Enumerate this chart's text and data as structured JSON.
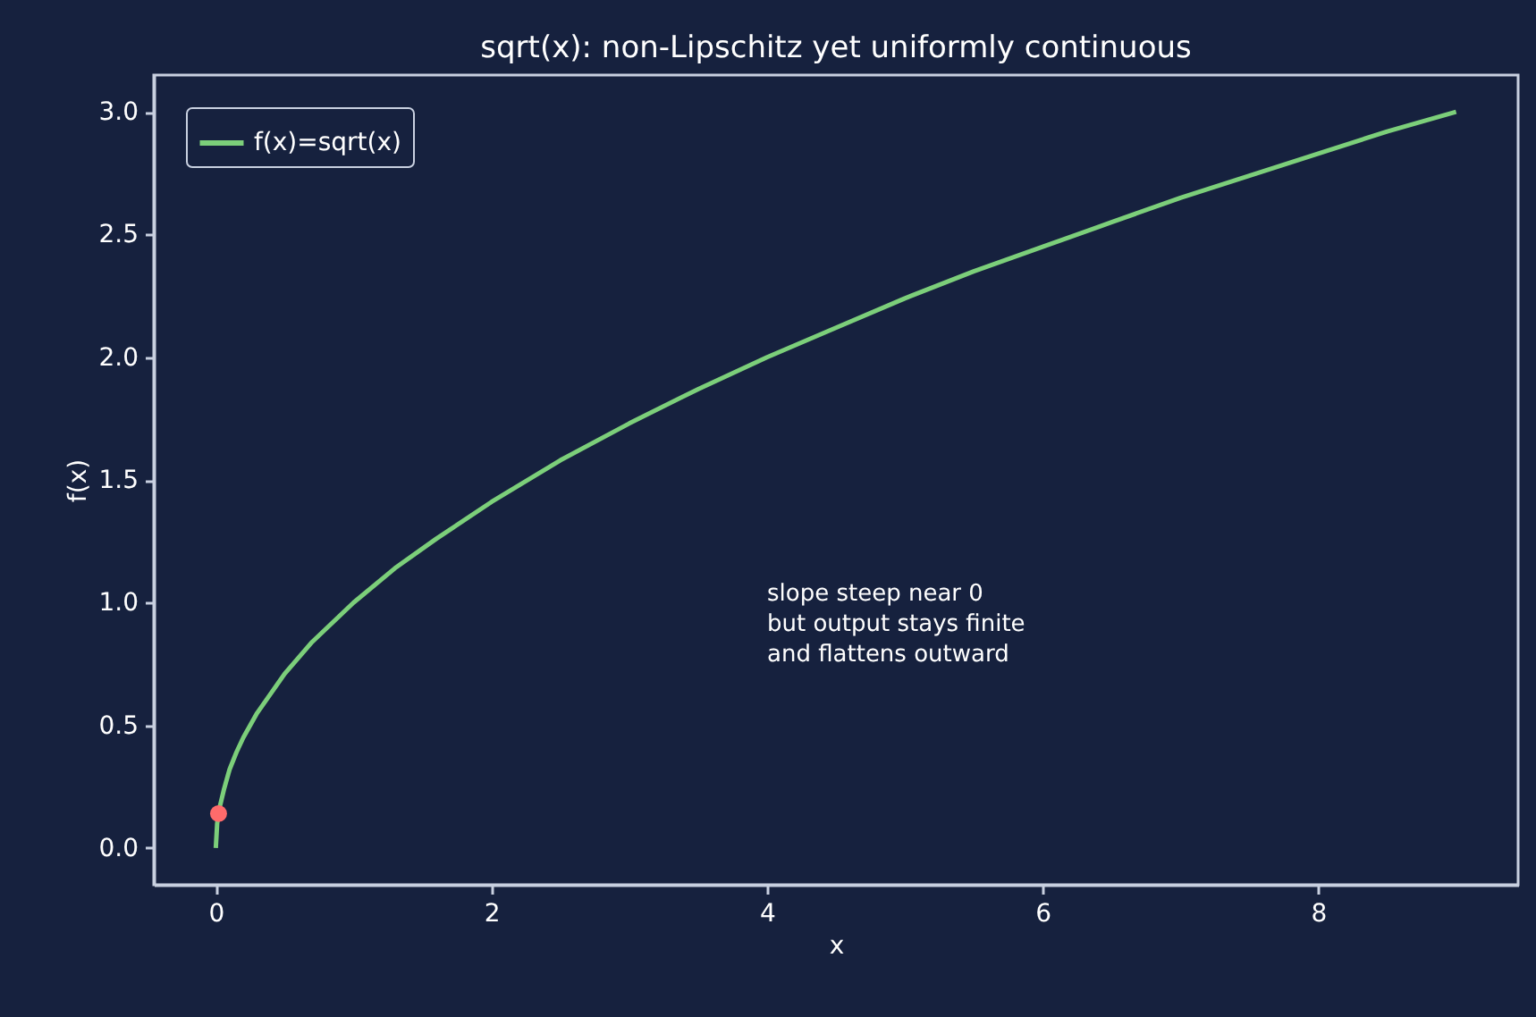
{
  "chart_data": {
    "type": "line",
    "title": "sqrt(x): non-Lipschitz yet uniformly continuous",
    "xlabel": "x",
    "ylabel": "f(x)",
    "x": [
      0,
      0.01,
      0.03,
      0.06,
      0.1,
      0.15,
      0.2,
      0.3,
      0.4,
      0.5,
      0.7,
      1,
      1.3,
      1.6,
      2,
      2.5,
      3,
      3.5,
      4,
      4.5,
      5,
      5.5,
      6,
      6.5,
      7,
      7.5,
      8,
      8.5,
      9
    ],
    "series": [
      {
        "name": "f(x)=sqrt(x)",
        "color": "#7ccf7a",
        "values": [
          0,
          0.1,
          0.17,
          0.24,
          0.32,
          0.39,
          0.45,
          0.55,
          0.63,
          0.71,
          0.84,
          1,
          1.14,
          1.26,
          1.41,
          1.58,
          1.73,
          1.87,
          2,
          2.12,
          2.24,
          2.35,
          2.45,
          2.55,
          2.65,
          2.74,
          2.83,
          2.92,
          3
        ]
      },
      {
        "color": "#ff6b6b",
        "type": "scatter",
        "x": [
          0.02
        ],
        "values": [
          0.14
        ]
      }
    ],
    "annotations": [
      "slope steep near 0\nbut output stays finite\nand flattens outward"
    ],
    "xlim": [
      -0.45,
      9.45
    ],
    "ylim": [
      -0.15,
      3.15
    ],
    "xticks": [
      0,
      2,
      4,
      6,
      8
    ],
    "yticks": [
      {
        "value": 0,
        "label": "0.0"
      },
      {
        "value": 0.5,
        "label": "0.5"
      },
      {
        "value": 1,
        "label": "1.0"
      },
      {
        "value": 1.5,
        "label": "1.5"
      },
      {
        "value": 2,
        "label": "2.0"
      },
      {
        "value": 2.5,
        "label": "2.5"
      },
      {
        "value": 3,
        "label": "3.0"
      }
    ],
    "grid": false,
    "legend": "top left",
    "line_style": "solid"
  }
}
